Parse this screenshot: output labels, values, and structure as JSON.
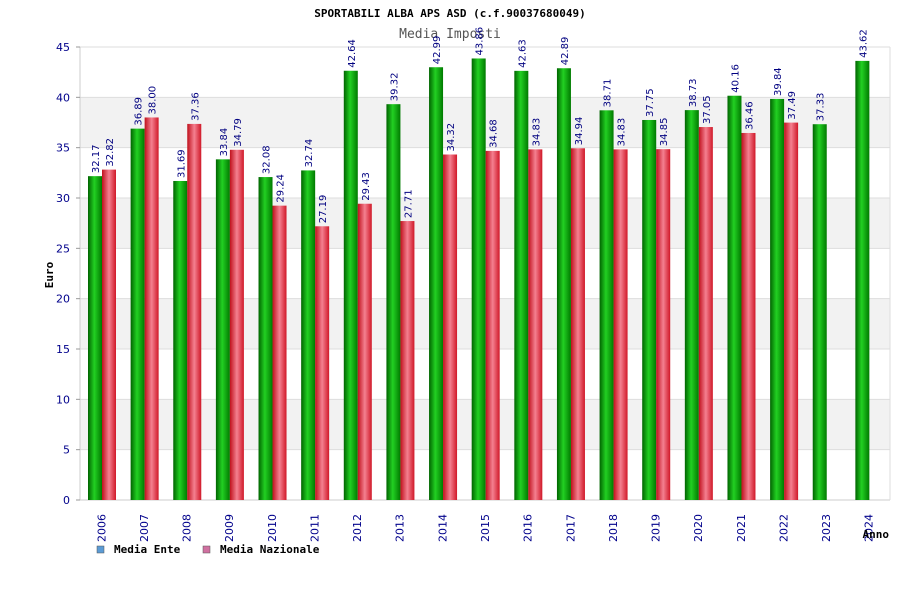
{
  "chart_data": {
    "type": "bar",
    "title": "SPORTABILI ALBA APS ASD (c.f.90037680049)",
    "subtitle": "Media Imposti",
    "xlabel": "Anno",
    "ylabel": "Euro",
    "ylim": [
      0,
      45
    ],
    "yticks": [
      0,
      5,
      10,
      15,
      20,
      25,
      30,
      35,
      40,
      45
    ],
    "categories": [
      "2006",
      "2007",
      "2008",
      "2009",
      "2010",
      "2011",
      "2012",
      "2013",
      "2014",
      "2015",
      "2016",
      "2017",
      "2018",
      "2019",
      "2020",
      "2021",
      "2022",
      "2023",
      "2024"
    ],
    "series": [
      {
        "name": "Media Ente",
        "color": "#00a000",
        "legend_color": "#5b9bd5",
        "values": [
          32.17,
          36.89,
          31.69,
          33.84,
          32.08,
          32.74,
          42.64,
          39.32,
          42.99,
          43.86,
          42.63,
          42.89,
          38.71,
          37.75,
          38.73,
          40.16,
          39.84,
          37.33,
          43.62
        ],
        "labels": [
          "32.17",
          "36.89",
          "31.69",
          "33.84",
          "32.08",
          "32.74",
          "42.64",
          "39.32",
          "42.99",
          "43.86",
          "42.63",
          "42.89",
          "38.71",
          "37.75",
          "38.73",
          "40.16",
          "39.84",
          "37.33",
          "43.62"
        ]
      },
      {
        "name": "Media Nazionale",
        "color": "#e02030",
        "legend_color": "#d070a0",
        "values": [
          32.82,
          38.0,
          37.36,
          34.79,
          29.24,
          27.19,
          29.43,
          27.71,
          34.32,
          34.68,
          34.83,
          34.94,
          34.83,
          34.85,
          37.05,
          36.46,
          37.49,
          null,
          null
        ],
        "labels": [
          "32.82",
          "38.00",
          "37.36",
          "34.79",
          "29.24",
          "27.19",
          "29.43",
          "27.71",
          "34.32",
          "34.68",
          "34.83",
          "34.94",
          "34.83",
          "34.85",
          "37.05",
          "36.46",
          "37.49",
          "",
          ""
        ]
      }
    ],
    "grid": true,
    "legend": "bottom-left"
  }
}
